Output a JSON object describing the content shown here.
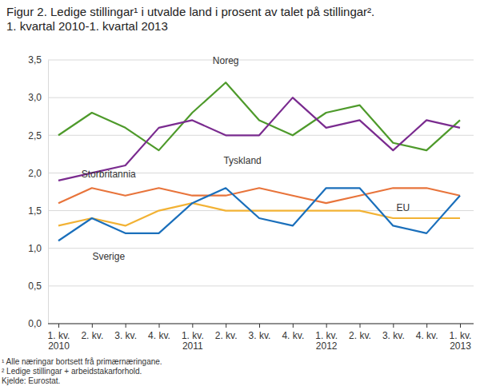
{
  "chart_data": {
    "type": "line",
    "title": [
      "Figur 2. Ledige stillingar¹ i utvalde land i prosent av talet på stillingar².",
      "1. kvartal 2010-1. kvartal 2013"
    ],
    "notes": [
      "¹ Alle næringar bortsett frå primærnæringane.",
      "² Ledige stillingar + arbeidstakarforhold.",
      "Kjelde: Eurostat."
    ],
    "categories": [
      "1. kv.\n2010",
      "2. kv.",
      "3. kv.",
      "4. kv.",
      "1. kv.\n2011",
      "2. kv.",
      "3. kv.",
      "4. kv.",
      "1. kv.\n2012",
      "2. kv.",
      "3. kv.",
      "4. kv.",
      "1. kv.\n2013"
    ],
    "series": [
      {
        "name": "Noreg",
        "color": "#4e9a2b",
        "values": [
          2.5,
          2.8,
          2.6,
          2.3,
          2.8,
          3.2,
          2.7,
          2.5,
          2.8,
          2.9,
          2.4,
          2.3,
          2.7
        ]
      },
      {
        "name": "Tyskland",
        "color": "#7a2b8f",
        "values": [
          1.9,
          2.0,
          2.1,
          2.6,
          2.7,
          2.5,
          2.5,
          3.0,
          2.6,
          2.7,
          2.3,
          2.7,
          2.6
        ]
      },
      {
        "name": "Storbritannia",
        "color": "#e8743b",
        "values": [
          1.6,
          1.8,
          1.7,
          1.8,
          1.7,
          1.7,
          1.8,
          1.7,
          1.6,
          1.7,
          1.8,
          1.8,
          1.7
        ]
      },
      {
        "name": "EU",
        "color": "#f2b234",
        "values": [
          1.3,
          1.4,
          1.3,
          1.5,
          1.6,
          1.5,
          1.5,
          1.5,
          1.5,
          1.5,
          1.4,
          1.4,
          1.4
        ]
      },
      {
        "name": "Sverige",
        "color": "#1a6fbb",
        "values": [
          1.1,
          1.4,
          1.2,
          1.2,
          1.6,
          1.8,
          1.4,
          1.3,
          1.8,
          1.8,
          1.3,
          1.2,
          1.7
        ]
      }
    ],
    "ylim": [
      0,
      3.5
    ],
    "yticks": [
      {
        "value": 0,
        "label": "0,0"
      },
      {
        "value": 0.5,
        "label": "0,5"
      },
      {
        "value": 1,
        "label": "1,0"
      },
      {
        "value": 1.5,
        "label": "1,5"
      },
      {
        "value": 2,
        "label": "2,0"
      },
      {
        "value": 2.5,
        "label": "2,5"
      },
      {
        "value": 3,
        "label": "3,0"
      },
      {
        "value": 3.5,
        "label": "3,5"
      }
    ],
    "grid": true
  }
}
